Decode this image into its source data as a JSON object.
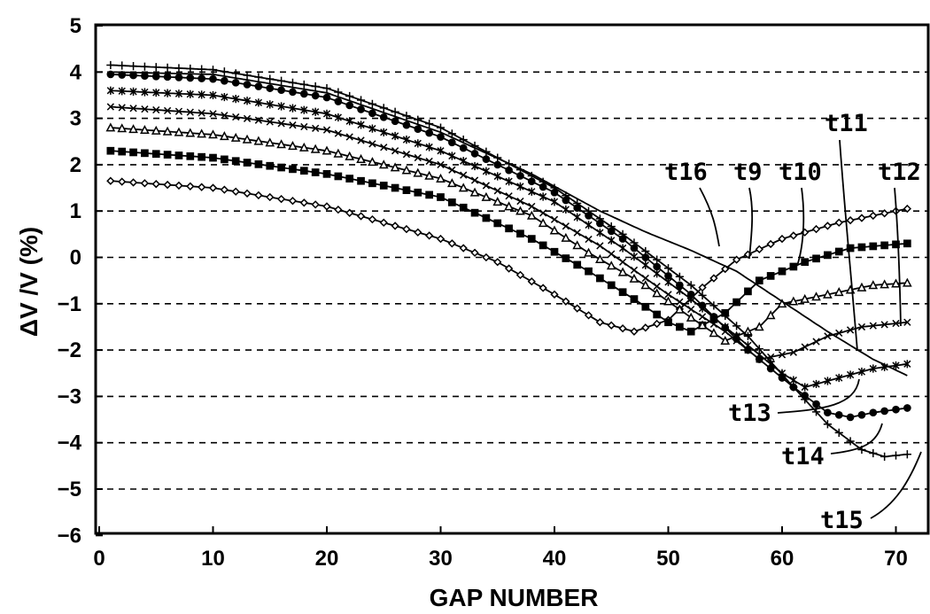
{
  "chart_data": {
    "type": "line",
    "title": "",
    "xlabel": "GAP NUMBER",
    "ylabel": "ΔV /V  (%)",
    "xlim": [
      0,
      72
    ],
    "ylim": [
      -6,
      5
    ],
    "x_ticks": [
      "0",
      "10",
      "20",
      "30",
      "40",
      "50",
      "60",
      "70"
    ],
    "y_ticks": [
      "5",
      "4",
      "3",
      "2",
      "1",
      "0",
      "−1",
      "−2",
      "−3",
      "−4",
      "−5",
      "−6"
    ],
    "grid": "horizontal dashed",
    "series": [
      {
        "name": "t9",
        "marker": "open-diamond",
        "points": [
          [
            1,
            1.65
          ],
          [
            10,
            1.5
          ],
          [
            20,
            1.1
          ],
          [
            30,
            0.4
          ],
          [
            35,
            -0.1
          ],
          [
            40,
            -0.8
          ],
          [
            44,
            -1.4
          ],
          [
            47,
            -1.6
          ],
          [
            50,
            -1.35
          ],
          [
            53,
            -0.65
          ],
          [
            56,
            -0.05
          ],
          [
            60,
            0.4
          ],
          [
            65,
            0.75
          ],
          [
            71,
            1.05
          ]
        ]
      },
      {
        "name": "t10",
        "marker": "filled-square",
        "points": [
          [
            1,
            2.3
          ],
          [
            10,
            2.15
          ],
          [
            20,
            1.8
          ],
          [
            30,
            1.3
          ],
          [
            38,
            0.4
          ],
          [
            43,
            -0.3
          ],
          [
            47,
            -0.9
          ],
          [
            50,
            -1.4
          ],
          [
            52,
            -1.6
          ],
          [
            55,
            -1.2
          ],
          [
            58,
            -0.5
          ],
          [
            62,
            -0.1
          ],
          [
            66,
            0.2
          ],
          [
            71,
            0.3
          ]
        ]
      },
      {
        "name": "t11",
        "marker": "open-triangle",
        "points": [
          [
            1,
            2.8
          ],
          [
            10,
            2.65
          ],
          [
            20,
            2.3
          ],
          [
            30,
            1.7
          ],
          [
            38,
            0.9
          ],
          [
            43,
            0.1
          ],
          [
            48,
            -0.6
          ],
          [
            52,
            -1.3
          ],
          [
            55,
            -1.8
          ],
          [
            58,
            -1.5
          ],
          [
            60,
            -1.0
          ],
          [
            64,
            -0.8
          ],
          [
            68,
            -0.6
          ],
          [
            71,
            -0.55
          ]
        ]
      },
      {
        "name": "t12",
        "marker": "cross",
        "points": [
          [
            1,
            3.25
          ],
          [
            10,
            3.1
          ],
          [
            20,
            2.75
          ],
          [
            30,
            2.0
          ],
          [
            38,
            1.1
          ],
          [
            44,
            0.25
          ],
          [
            50,
            -0.8
          ],
          [
            55,
            -1.6
          ],
          [
            58,
            -2.2
          ],
          [
            61,
            -2.05
          ],
          [
            64,
            -1.7
          ],
          [
            67,
            -1.5
          ],
          [
            71,
            -1.4
          ]
        ]
      },
      {
        "name": "t13",
        "marker": "asterisk",
        "points": [
          [
            1,
            3.6
          ],
          [
            10,
            3.5
          ],
          [
            20,
            3.1
          ],
          [
            30,
            2.3
          ],
          [
            40,
            1.2
          ],
          [
            46,
            0.2
          ],
          [
            52,
            -0.9
          ],
          [
            57,
            -1.9
          ],
          [
            60,
            -2.5
          ],
          [
            62,
            -2.8
          ],
          [
            65,
            -2.6
          ],
          [
            68,
            -2.4
          ],
          [
            71,
            -2.3
          ]
        ]
      },
      {
        "name": "t14",
        "marker": "filled-circle",
        "points": [
          [
            1,
            3.95
          ],
          [
            10,
            3.85
          ],
          [
            20,
            3.45
          ],
          [
            30,
            2.6
          ],
          [
            40,
            1.4
          ],
          [
            46,
            0.4
          ],
          [
            52,
            -0.8
          ],
          [
            57,
            -2.0
          ],
          [
            61,
            -2.8
          ],
          [
            64,
            -3.35
          ],
          [
            66,
            -3.45
          ],
          [
            68,
            -3.35
          ],
          [
            71,
            -3.25
          ]
        ]
      },
      {
        "name": "t15",
        "marker": "plus",
        "points": [
          [
            1,
            4.15
          ],
          [
            10,
            4.05
          ],
          [
            20,
            3.65
          ],
          [
            30,
            2.8
          ],
          [
            40,
            1.5
          ],
          [
            46,
            0.5
          ],
          [
            52,
            -0.6
          ],
          [
            57,
            -1.7
          ],
          [
            61,
            -2.8
          ],
          [
            64,
            -3.6
          ],
          [
            67,
            -4.15
          ],
          [
            69,
            -4.3
          ],
          [
            71,
            -4.25
          ]
        ]
      },
      {
        "name": "t16",
        "marker": "none",
        "points": [
          [
            1,
            4.0
          ],
          [
            10,
            3.95
          ],
          [
            20,
            3.55
          ],
          [
            30,
            2.7
          ],
          [
            38,
            1.8
          ],
          [
            44,
            1.0
          ],
          [
            48,
            0.55
          ],
          [
            52,
            0.15
          ],
          [
            56,
            -0.3
          ],
          [
            60,
            -0.95
          ],
          [
            64,
            -1.6
          ],
          [
            68,
            -2.2
          ],
          [
            71,
            -2.55
          ]
        ]
      }
    ],
    "annotations": [
      {
        "text": "t16"
      },
      {
        "text": "t9"
      },
      {
        "text": "t10"
      },
      {
        "text": "t11"
      },
      {
        "text": "t12"
      },
      {
        "text": "t13"
      },
      {
        "text": "t14"
      },
      {
        "text": "t15"
      }
    ]
  }
}
